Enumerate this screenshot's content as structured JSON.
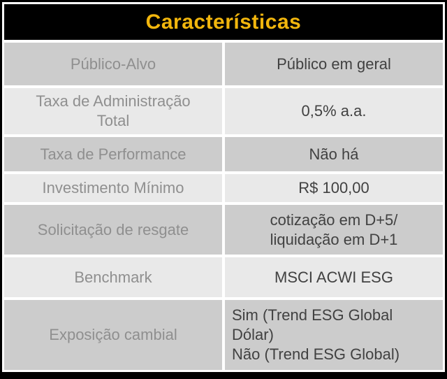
{
  "header": {
    "title": "Características"
  },
  "table": {
    "rows": [
      {
        "label": "Público-Alvo",
        "value": "Público em geral"
      },
      {
        "label": "Taxa de Administração\nTotal",
        "value": "0,5% a.a."
      },
      {
        "label": "Taxa de Performance",
        "value": "Não há"
      },
      {
        "label": "Investimento Mínimo",
        "value": "R$ 100,00"
      },
      {
        "label": "Solicitação de resgate",
        "value": "cotização em D+5/\nliquidação em D+1"
      },
      {
        "label": "Benchmark",
        "value": "MSCI ACWI ESG"
      },
      {
        "label": "Exposição cambial",
        "value": "Sim (Trend ESG Global\nDólar)\nNão (Trend ESG Global)"
      }
    ]
  },
  "colors": {
    "accent": "#F2B60D",
    "header_bg": "#000000",
    "frame": "#000000",
    "row_dark": "#cccccc",
    "row_light": "#e9e9e9",
    "label_text": "#8f8f8f",
    "value_text": "#414141"
  }
}
